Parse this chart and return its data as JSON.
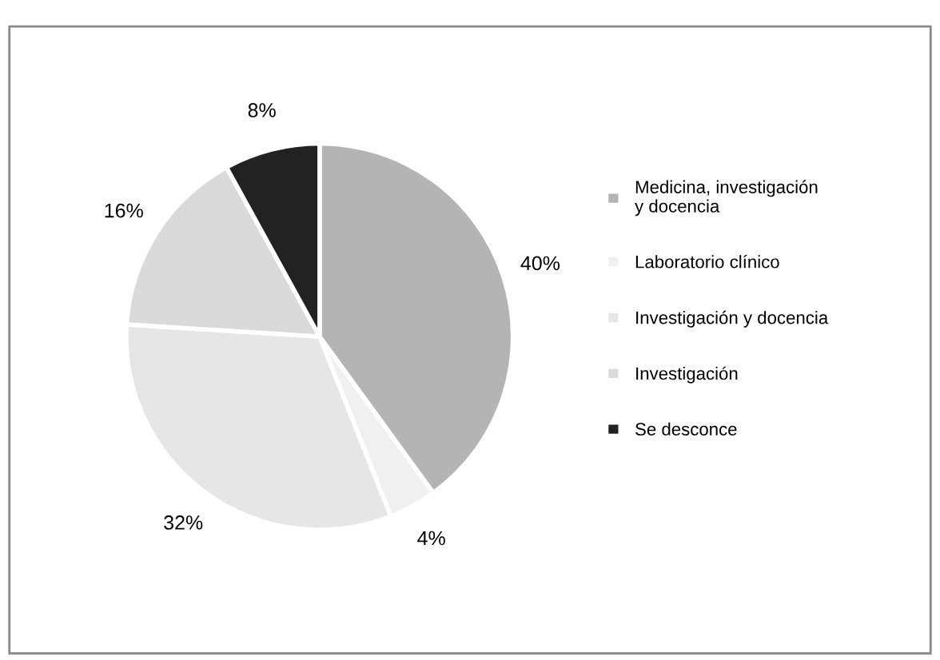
{
  "chart_data": {
    "type": "pie",
    "categories": [
      "Medicina, investigación\ny docencia",
      "Laboratorio clínico",
      "Investigación y docencia",
      "Investigación",
      "Se desconce"
    ],
    "values": [
      40,
      4,
      32,
      16,
      8
    ],
    "colors": [
      "#b4b4b4",
      "#f0f0f0",
      "#e6e6e6",
      "#dadada",
      "#222222"
    ],
    "value_labels": [
      "40%",
      "4%",
      "32%",
      "16%",
      "8%"
    ],
    "legend": "right"
  }
}
